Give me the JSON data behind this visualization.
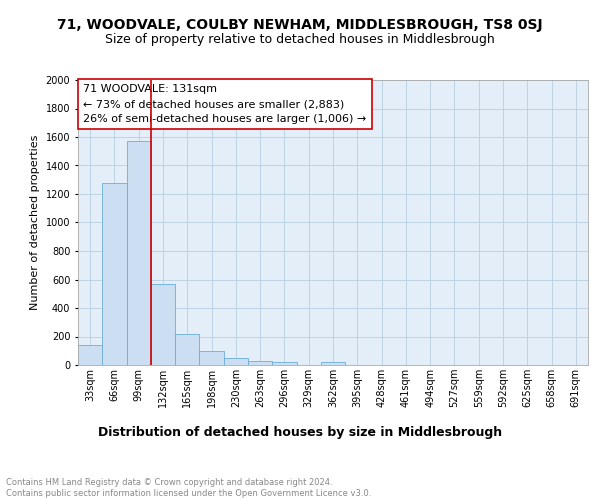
{
  "title": "71, WOODVALE, COULBY NEWHAM, MIDDLESBROUGH, TS8 0SJ",
  "subtitle": "Size of property relative to detached houses in Middlesbrough",
  "xlabel": "Distribution of detached houses by size in Middlesbrough",
  "ylabel": "Number of detached properties",
  "bar_labels": [
    "33sqm",
    "66sqm",
    "99sqm",
    "132sqm",
    "165sqm",
    "198sqm",
    "230sqm",
    "263sqm",
    "296sqm",
    "329sqm",
    "362sqm",
    "395sqm",
    "428sqm",
    "461sqm",
    "494sqm",
    "527sqm",
    "559sqm",
    "592sqm",
    "625sqm",
    "658sqm",
    "691sqm"
  ],
  "bar_values": [
    137,
    1277,
    1573,
    570,
    215,
    100,
    50,
    28,
    20,
    0,
    20,
    0,
    0,
    0,
    0,
    0,
    0,
    0,
    0,
    0,
    0
  ],
  "bar_color": "#ccdff2",
  "bar_edge_color": "#6aaed6",
  "marker_bar_index": 3,
  "marker_color": "#cc0000",
  "annotation_text": "71 WOODVALE: 131sqm\n← 73% of detached houses are smaller (2,883)\n26% of semi-detached houses are larger (1,006) →",
  "annotation_box_facecolor": "#ffffff",
  "annotation_box_edgecolor": "#cc0000",
  "ylim": [
    0,
    2000
  ],
  "yticks": [
    0,
    200,
    400,
    600,
    800,
    1000,
    1200,
    1400,
    1600,
    1800,
    2000
  ],
  "background_color": "#ffffff",
  "plot_bg_color": "#e4eef8",
  "grid_color": "#b8cfe0",
  "title_fontsize": 10,
  "subtitle_fontsize": 9,
  "xlabel_fontsize": 9,
  "ylabel_fontsize": 8,
  "tick_fontsize": 7,
  "annotation_fontsize": 8,
  "footer_fontsize": 6
}
